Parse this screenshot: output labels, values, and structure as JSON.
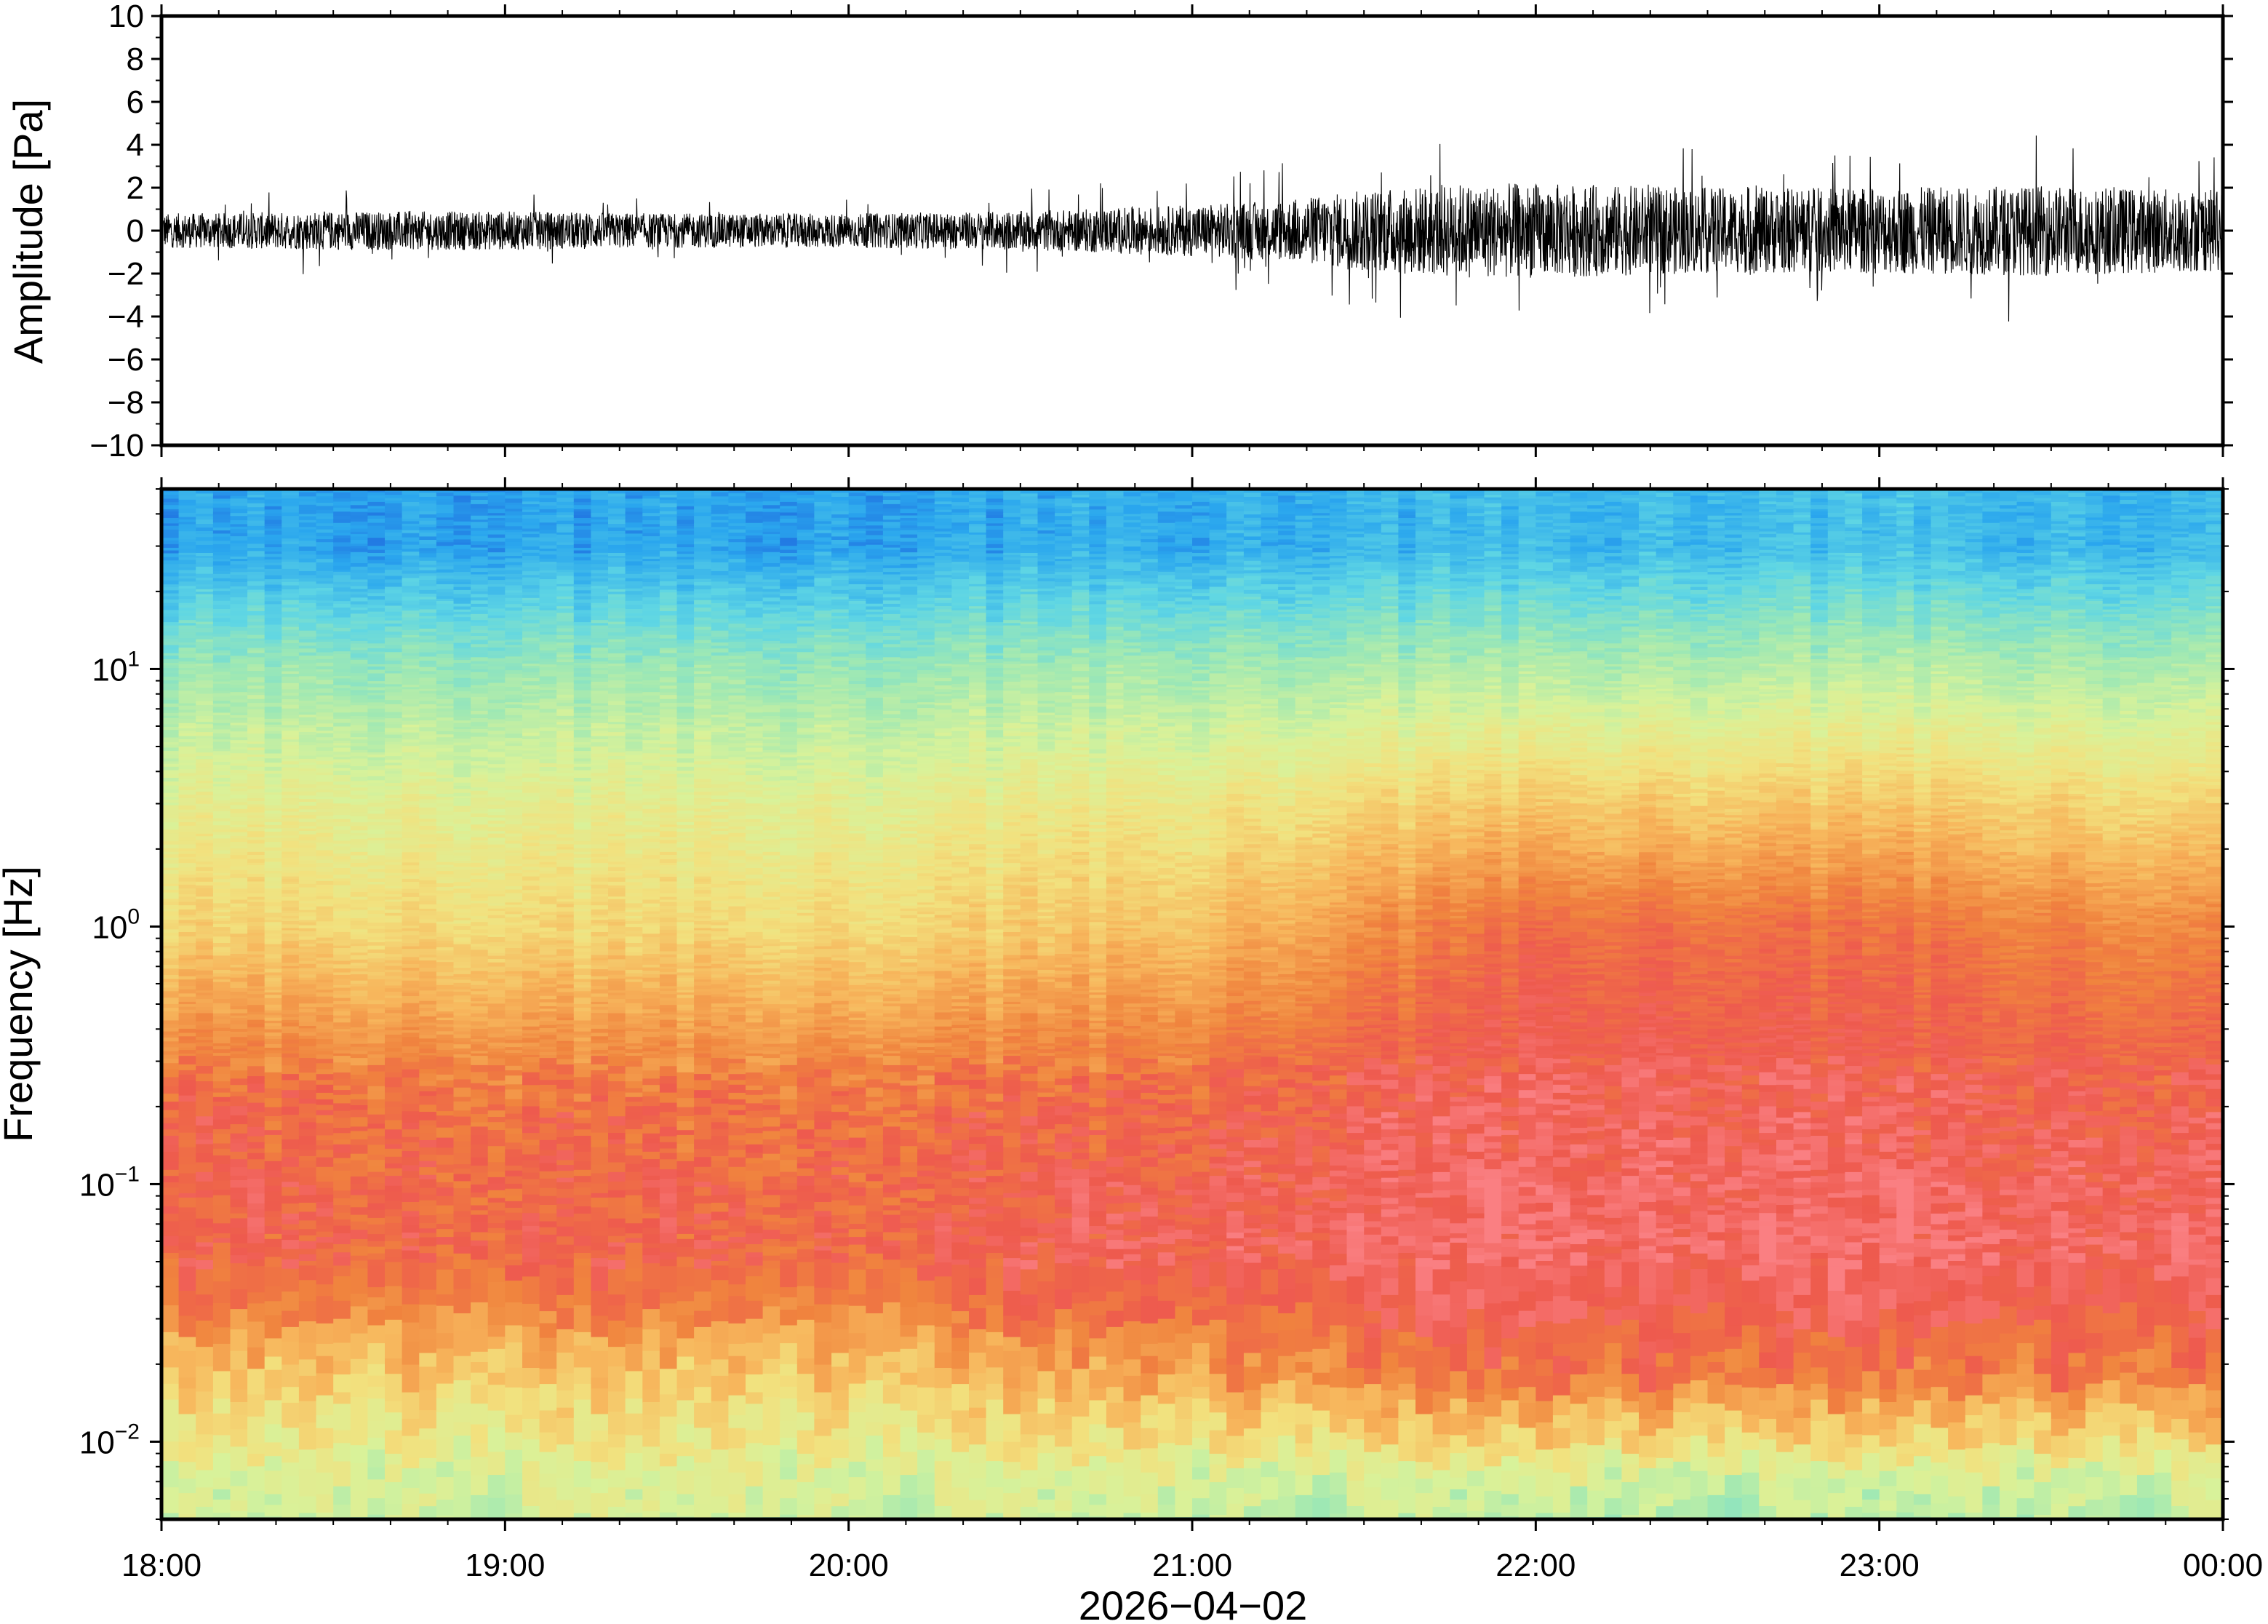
{
  "chart_data": [
    {
      "type": "line",
      "panel": "waveform",
      "ylabel": "Amplitude [Pa]",
      "ylim": [
        -10,
        10
      ],
      "y_ticks": [
        -10,
        -8,
        -6,
        -4,
        -2,
        0,
        2,
        4,
        6,
        8,
        10
      ],
      "y_tick_labels": [
        "−10",
        "−8",
        "−6",
        "−4",
        "−2",
        "0",
        "2",
        "4",
        "6",
        "8",
        "10"
      ],
      "x_range": [
        "18:00",
        "00:00"
      ],
      "line_color": "#000000",
      "series": [
        {
          "x_hours": [
            18.0,
            18.5,
            19.0,
            19.5,
            20.0,
            20.5,
            21.0,
            21.25,
            21.5,
            21.75,
            22.0,
            22.5,
            23.0,
            23.5,
            24.0
          ],
          "typical_envelope_pa": [
            0.8,
            0.9,
            0.9,
            0.8,
            0.8,
            0.9,
            1.2,
            1.4,
            1.9,
            2.2,
            2.2,
            2.0,
            2.0,
            2.1,
            1.9
          ],
          "peak_envelope_pa": [
            1.5,
            2.2,
            1.8,
            1.6,
            1.6,
            2.0,
            3.0,
            3.3,
            4.2,
            4.3,
            4.1,
            4.0,
            4.4,
            4.5,
            3.8
          ]
        }
      ]
    },
    {
      "type": "heatmap",
      "panel": "spectrogram",
      "ylabel": "Frequency [Hz]",
      "y_scale": "log",
      "ylim": [
        0.005,
        50
      ],
      "y_ticks": [
        0.01,
        0.1,
        1,
        10
      ],
      "y_tick_labels": [
        {
          "base": "10",
          "exp": "−2"
        },
        {
          "base": "10",
          "exp": "−1"
        },
        {
          "base": "10",
          "exp": "0"
        },
        {
          "base": "10",
          "exp": "1"
        }
      ],
      "x_ticks": [
        "18:00",
        "19:00",
        "20:00",
        "21:00",
        "22:00",
        "23:00",
        "00:00"
      ],
      "xlabel": "2026−04−02",
      "colormap": [
        "#0a1f9e",
        "#1a4fd8",
        "#2aa6ee",
        "#5fd6e4",
        "#9ee8b4",
        "#d8f29a",
        "#f2e17e",
        "#f7b65c",
        "#f0843e",
        "#ee5a4e",
        "#fa7f82"
      ],
      "x_hours": [
        18,
        19,
        20,
        21,
        22,
        23,
        24
      ],
      "y_freq_hz": [
        0.007,
        0.02,
        0.05,
        0.2,
        1,
        3,
        10,
        30
      ],
      "level_0to1": [
        [
          0.48,
          0.5,
          0.5,
          0.48,
          0.46,
          0.45,
          0.48
        ],
        [
          0.66,
          0.66,
          0.66,
          0.75,
          0.85,
          0.82,
          0.82
        ],
        [
          0.88,
          0.88,
          0.88,
          0.93,
          0.96,
          0.96,
          0.95
        ],
        [
          0.88,
          0.85,
          0.85,
          0.88,
          0.94,
          0.92,
          0.9
        ],
        [
          0.63,
          0.62,
          0.62,
          0.68,
          0.86,
          0.84,
          0.78
        ],
        [
          0.54,
          0.54,
          0.54,
          0.58,
          0.66,
          0.66,
          0.62
        ],
        [
          0.4,
          0.4,
          0.4,
          0.42,
          0.44,
          0.45,
          0.43
        ],
        [
          0.2,
          0.2,
          0.2,
          0.22,
          0.24,
          0.25,
          0.23
        ]
      ]
    }
  ]
}
